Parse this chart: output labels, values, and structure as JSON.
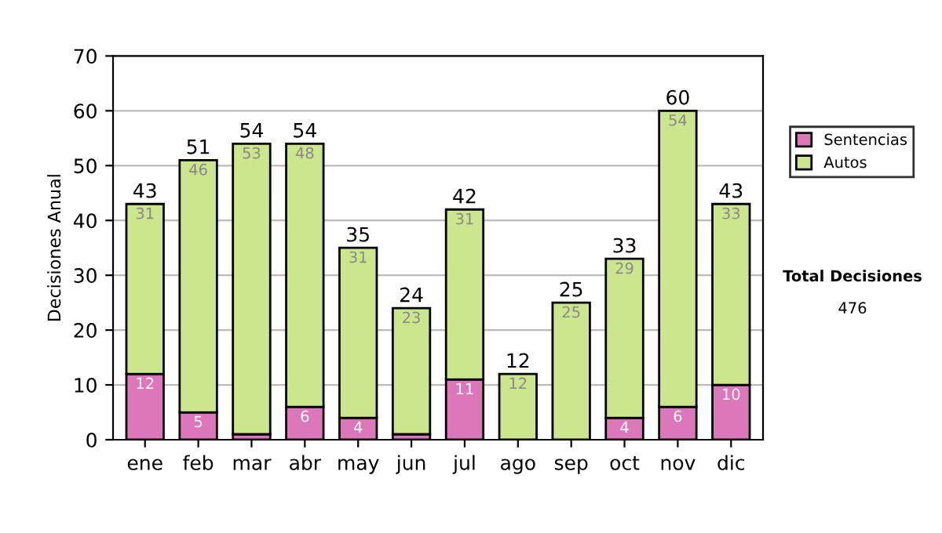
{
  "chart_data": {
    "type": "bar",
    "stacked": true,
    "ylabel": "Decisiones Anual",
    "categories": [
      "ene",
      "feb",
      "mar",
      "abr",
      "may",
      "jun",
      "jul",
      "ago",
      "sep",
      "oct",
      "nov",
      "dic"
    ],
    "series": [
      {
        "name": "Sentencias",
        "color": "#dd77bb",
        "values": [
          12,
          5,
          1,
          6,
          4,
          1,
          11,
          0,
          0,
          4,
          6,
          10
        ],
        "value_labels": [
          "12",
          "5",
          null,
          "6",
          "4",
          null,
          "11",
          null,
          null,
          "4",
          "6",
          "10"
        ]
      },
      {
        "name": "Autos",
        "color": "#cce68e",
        "values": [
          31,
          46,
          53,
          48,
          31,
          23,
          31,
          12,
          25,
          29,
          54,
          33
        ],
        "value_labels": [
          "31",
          "46",
          "53",
          "48",
          "31",
          "23",
          "31",
          "12",
          "25",
          "29",
          "54",
          "33"
        ]
      }
    ],
    "totals": [
      "43",
      "51",
      "54",
      "54",
      "35",
      "24",
      "42",
      "12",
      "25",
      "33",
      "60",
      "43"
    ],
    "ylim": [
      0,
      70
    ],
    "yticks": [
      0,
      10,
      20,
      30,
      40,
      50,
      60,
      70
    ],
    "grid": "y",
    "legend": "right",
    "annotations": [
      "Total Decisiones",
      "476"
    ]
  }
}
